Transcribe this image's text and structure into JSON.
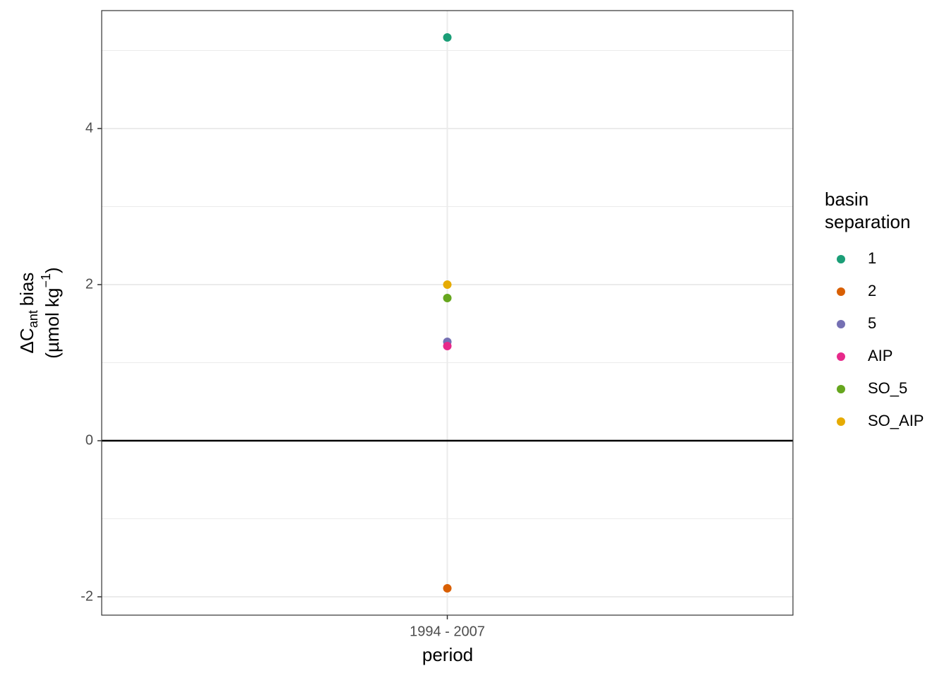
{
  "chart_data": {
    "type": "scatter",
    "xlabel": "period",
    "ylabel": {
      "main": "ΔC",
      "sub": "ant",
      "rest": "bias",
      "unit": "(µmol kg",
      "sup": "−1",
      "close": ")"
    },
    "categories": [
      "1994 - 2007"
    ],
    "series": [
      {
        "name": "1",
        "color": "#1b9e77",
        "values": [
          5.167
        ]
      },
      {
        "name": "2",
        "color": "#d95f02",
        "values": [
          -1.891
        ]
      },
      {
        "name": "5",
        "color": "#7570b3",
        "values": [
          1.267
        ]
      },
      {
        "name": "AIP",
        "color": "#e7298a",
        "values": [
          1.213
        ]
      },
      {
        "name": "SO_5",
        "color": "#66a61e",
        "values": [
          1.828
        ]
      },
      {
        "name": "SO_AIP",
        "color": "#e6ab02",
        "values": [
          2.0
        ]
      }
    ],
    "legend_title": [
      "basin",
      "separation"
    ],
    "legend_position": "right",
    "ylim": [
      -2.235,
      5.511
    ],
    "yticks": [
      -2,
      0,
      2,
      4
    ],
    "yminor": [
      -1,
      1,
      3,
      5
    ],
    "hline": 0,
    "grid": true
  }
}
